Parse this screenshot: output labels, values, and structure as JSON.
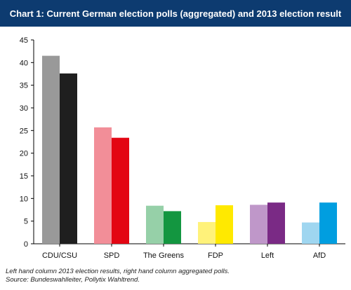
{
  "header": {
    "title": "Chart 1: Current German election polls (aggregated) and 2013 election result"
  },
  "notes": {
    "line1": "Left hand column 2013 election results, right hand column aggregated polls.",
    "line2": "Source: Bundeswahlleiter, Pollytix Wahltrend."
  },
  "colors": {
    "header_bg": "#0d3b70",
    "CDU/CSU": [
      "#999999",
      "#1f1f1f"
    ],
    "SPD": [
      "#f28e98",
      "#e30613"
    ],
    "The Greens": [
      "#96d0a8",
      "#139640"
    ],
    "FDP": [
      "#fff27a",
      "#ffe900"
    ],
    "Left": [
      "#bf97c9",
      "#7a2a85"
    ],
    "AfD": [
      "#9fd6f0",
      "#009ee0"
    ]
  },
  "chart_data": {
    "type": "bar",
    "title": "Chart 1: Current German election polls (aggregated) and 2013 election result",
    "xlabel": "",
    "ylabel": "",
    "categories": [
      "CDU/CSU",
      "SPD",
      "The Greens",
      "FDP",
      "Left",
      "AfD"
    ],
    "series": [
      {
        "values": [
          41.5,
          25.7,
          8.4,
          4.8,
          8.6,
          4.7
        ]
      },
      {
        "values": [
          37.6,
          23.4,
          7.2,
          8.5,
          9.1,
          9.1
        ]
      }
    ],
    "ylim": [
      0,
      45
    ],
    "yticks": [
      0,
      5,
      10,
      15,
      20,
      25,
      30,
      35,
      40,
      45
    ],
    "grid": false,
    "legend": "none"
  }
}
